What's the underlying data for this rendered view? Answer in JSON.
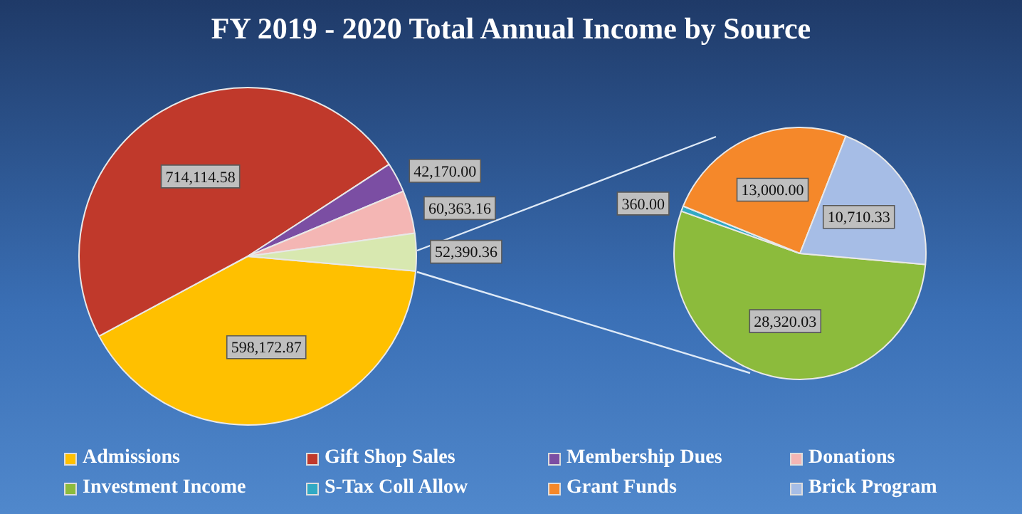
{
  "chart_data": [
    {
      "type": "pie",
      "title": "FY 2019 - 2020 Total Annual Income by Source",
      "categories": [
        "Admissions",
        "Gift Shop Sales",
        "Membership Dues",
        "Donations",
        null
      ],
      "values": [
        598172.87,
        714114.58,
        42170.0,
        60363.16,
        52390.36
      ],
      "value_labels": [
        "598,172.87",
        "714,114.58",
        "42,170.00",
        "60,363.16",
        "52,390.36"
      ],
      "colors": [
        "#ffc000",
        "#c0392b",
        "#7b4ea3",
        "#f4b6b4",
        "#d8e8b0"
      ],
      "legend": "bottom"
    },
    {
      "type": "pie",
      "categories": [
        "Investment Income",
        "S-Tax Coll Allow",
        "Grant Funds",
        "Brick Program"
      ],
      "values": [
        28320.03,
        360.0,
        13000.0,
        10710.33
      ],
      "value_labels": [
        "28,320.03",
        "360.00",
        "13,000.00",
        "10,710.33"
      ],
      "colors": [
        "#8cbb3c",
        "#31a9c4",
        "#f5882a",
        "#a6bde6"
      ],
      "legend": "bottom"
    }
  ]
}
